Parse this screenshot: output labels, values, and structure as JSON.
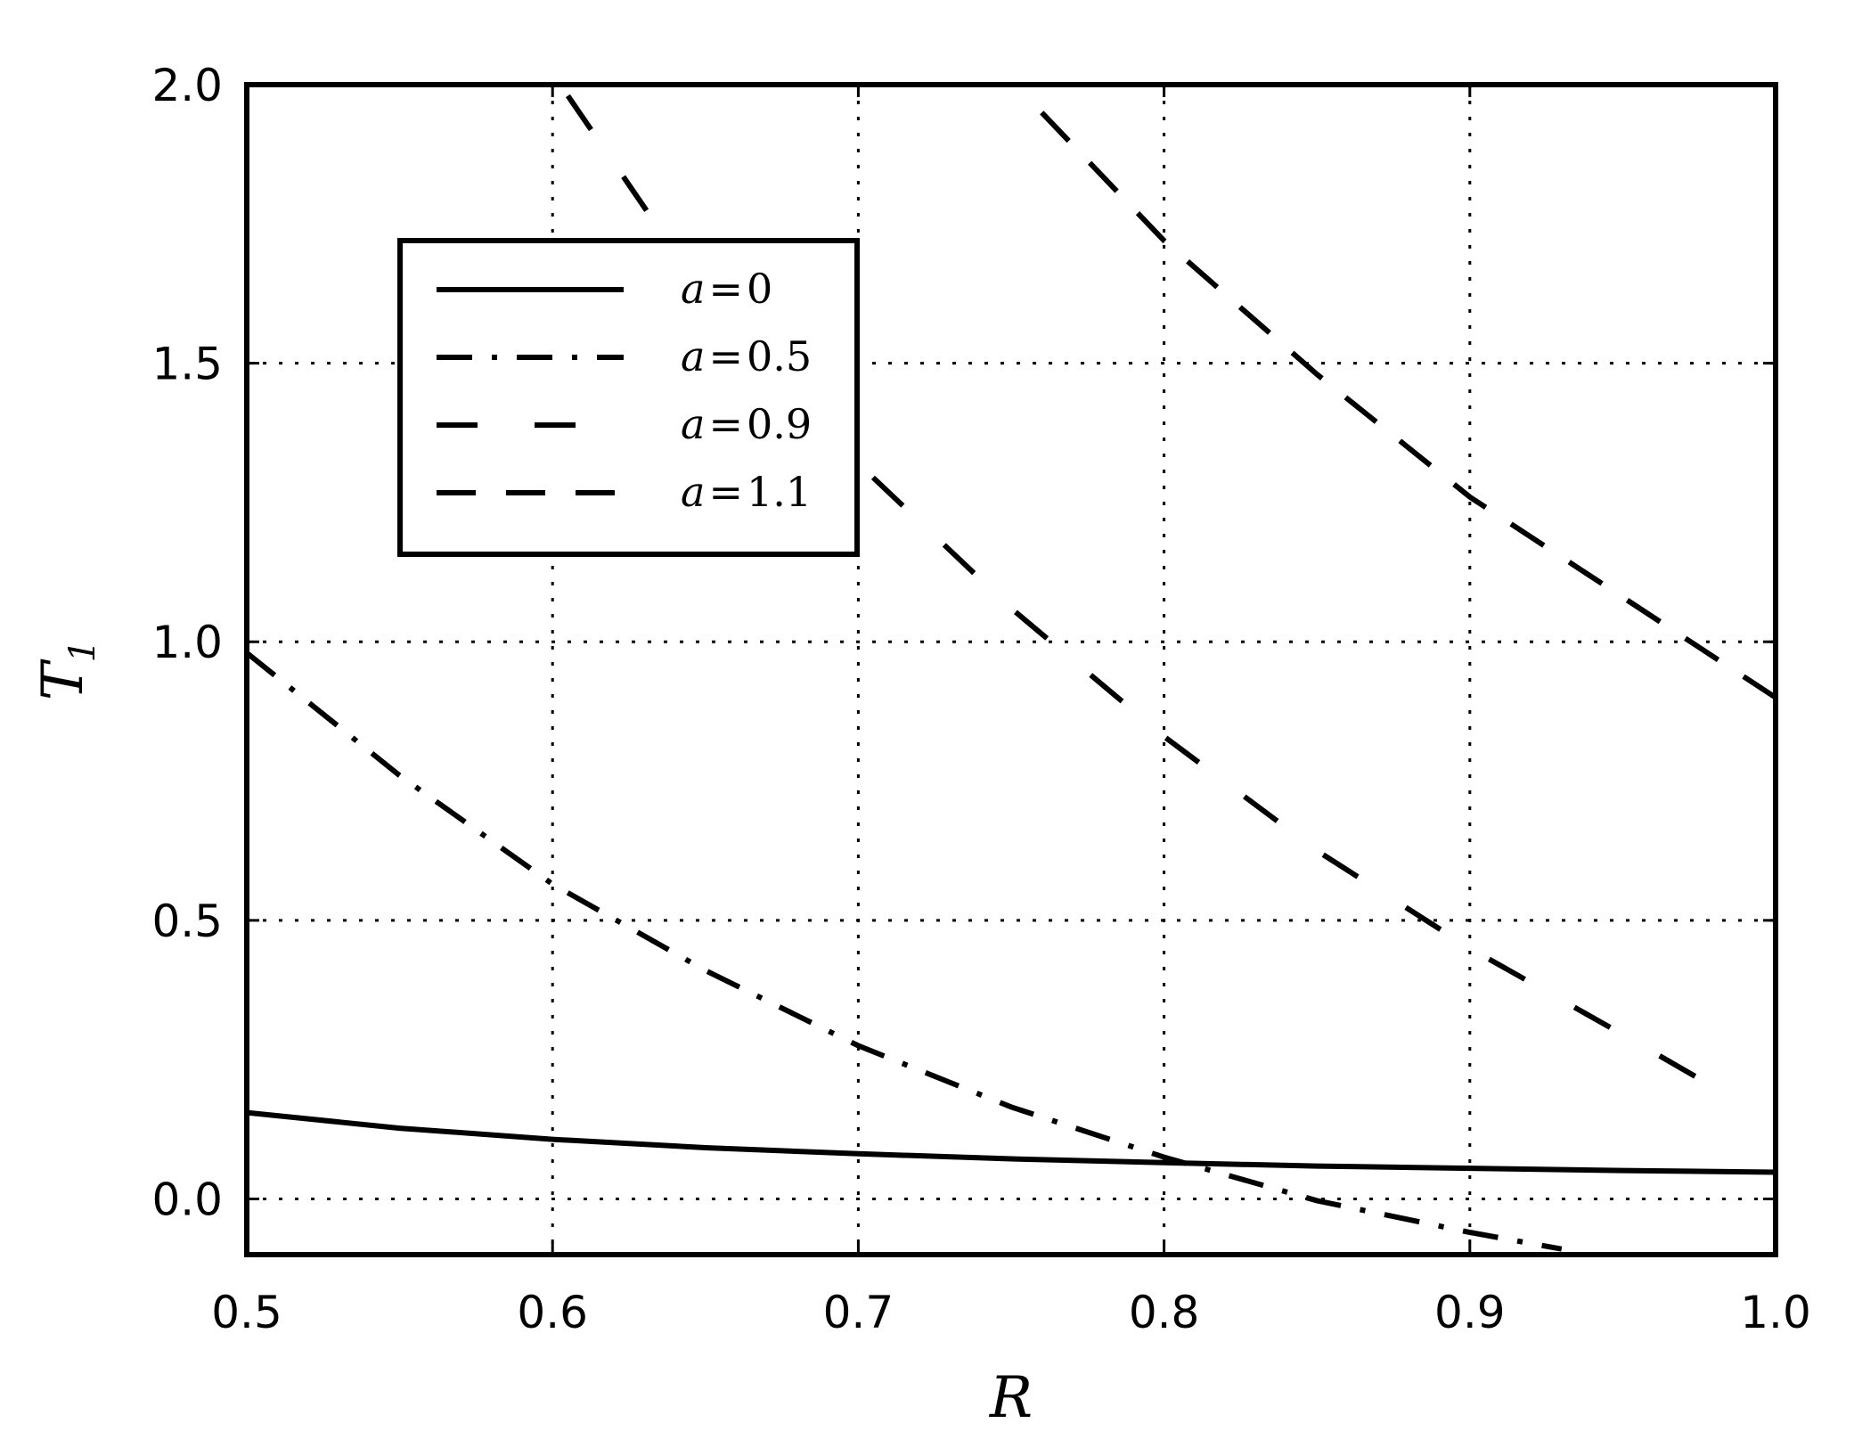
{
  "chart_data": {
    "type": "line",
    "xlabel": "R",
    "ylabel": "T",
    "ylabel_subscript": "1",
    "xlim": [
      0.5,
      1.0
    ],
    "ylim": [
      -0.1,
      2.0
    ],
    "xticks": [
      0.5,
      0.6,
      0.7,
      0.8,
      0.9,
      1.0
    ],
    "xtick_labels": [
      "0.5",
      "0.6",
      "0.7",
      "0.8",
      "0.9",
      "1.0"
    ],
    "yticks": [
      0.0,
      0.5,
      1.0,
      1.5,
      2.0
    ],
    "ytick_labels": [
      "0.0",
      "0.5",
      "1.0",
      "1.5",
      "2.0"
    ],
    "grid": true,
    "grid_style": "dotted",
    "legend_position": "upper-left",
    "series": [
      {
        "name": "a=0",
        "style": "solid",
        "color": "#000000",
        "x": [
          0.5,
          0.55,
          0.6,
          0.65,
          0.7,
          0.75,
          0.8,
          0.85,
          0.9,
          0.95,
          1.0
        ],
        "y": [
          0.155,
          0.127,
          0.107,
          0.092,
          0.081,
          0.072,
          0.065,
          0.059,
          0.055,
          0.051,
          0.048
        ]
      },
      {
        "name": "a=0.5",
        "style": "dashdot",
        "color": "#000000",
        "x": [
          0.5,
          0.55,
          0.6,
          0.65,
          0.7,
          0.75,
          0.8,
          0.85,
          0.9,
          0.93
        ],
        "y": [
          0.98,
          0.76,
          0.565,
          0.41,
          0.275,
          0.165,
          0.075,
          -0.003,
          -0.06,
          -0.09
        ]
      },
      {
        "name": "a=0.9",
        "style": "longdash",
        "color": "#000000",
        "x": [
          0.605,
          0.65,
          0.7,
          0.75,
          0.8,
          0.85,
          0.9,
          0.95,
          0.98
        ],
        "y": [
          1.98,
          1.62,
          1.32,
          1.06,
          0.83,
          0.625,
          0.45,
          0.295,
          0.2
        ]
      },
      {
        "name": "a=1.1",
        "style": "dashed",
        "color": "#000000",
        "x": [
          0.76,
          0.8,
          0.85,
          0.9,
          0.95,
          1.0
        ],
        "y": [
          1.95,
          1.72,
          1.48,
          1.26,
          1.08,
          0.9
        ]
      }
    ],
    "legend": {
      "entries": [
        {
          "var": "a",
          "eq": "=",
          "val": "0"
        },
        {
          "var": "a",
          "eq": "=",
          "val": "0.5"
        },
        {
          "var": "a",
          "eq": "=",
          "val": "0.9"
        },
        {
          "var": "a",
          "eq": "=",
          "val": "1.1"
        }
      ]
    }
  }
}
